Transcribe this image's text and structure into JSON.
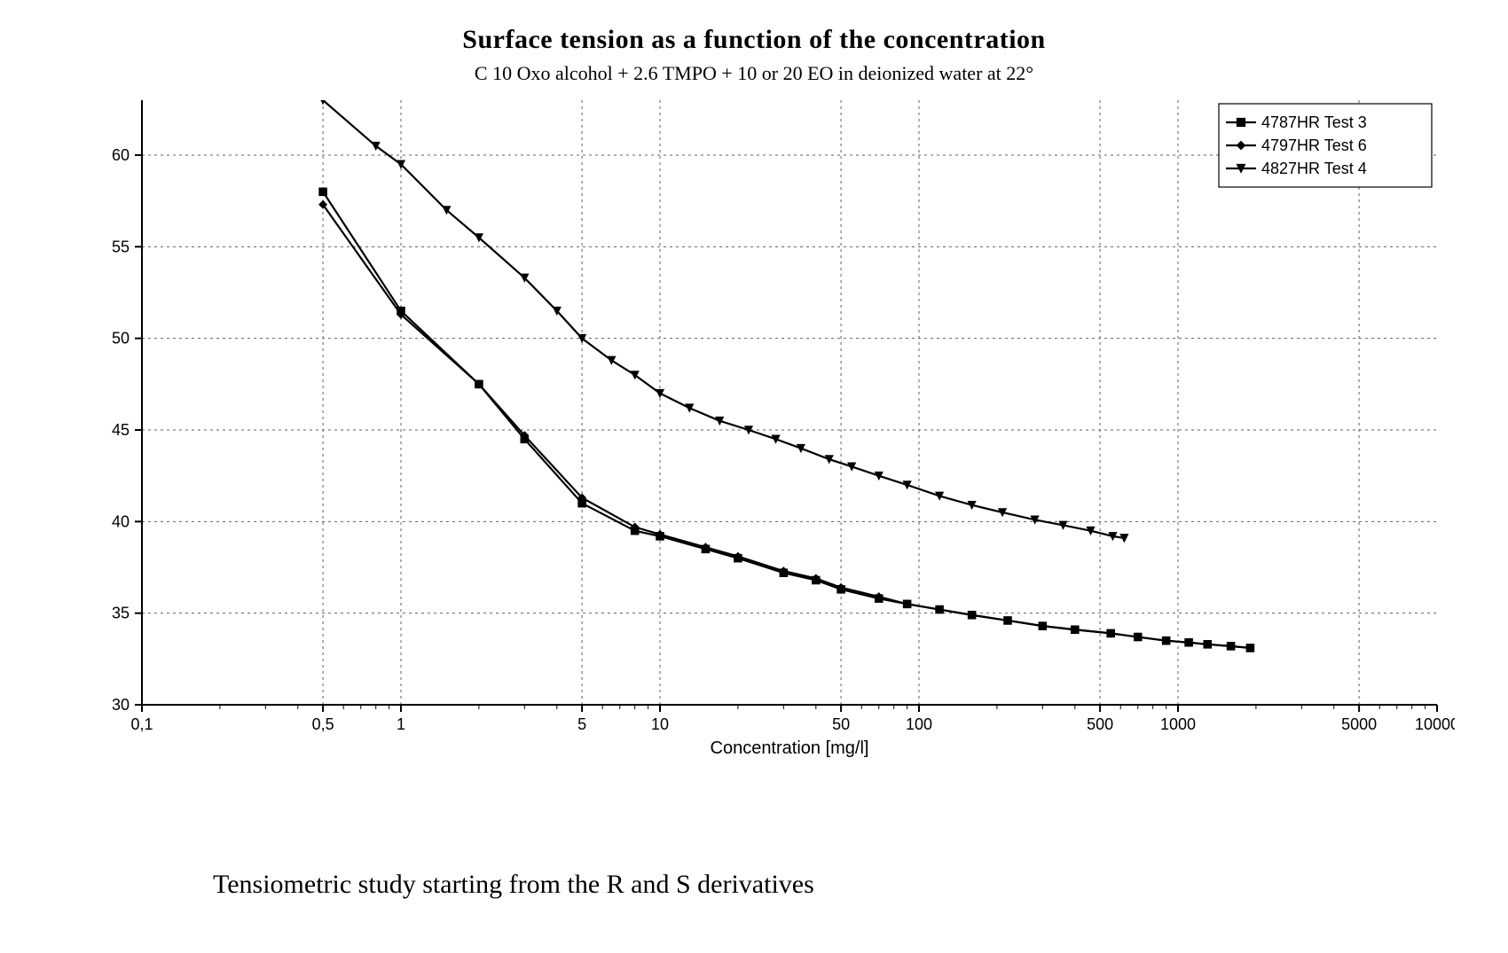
{
  "title": "Surface tension as a function of the concentration",
  "subtitle": "C 10 Oxo alcohol + 2.6 TMPO + 10 or 20 EO in deionized water at 22°",
  "caption": "Tensiometric study starting from the R and S derivatives",
  "chart": {
    "type": "line",
    "background_color": "#ffffff",
    "axis_color": "#000000",
    "grid_color": "#606060",
    "grid_dash": "3 4",
    "line_width": 2.2,
    "marker_size": 6,
    "font_family_axis": "Arial",
    "tick_fontsize": 18,
    "axis_label_fontsize": 20,
    "x": {
      "label": "Concentration [mg/l]",
      "scale": "log",
      "min": 0.1,
      "max": 10000,
      "major_ticks": [
        0.1,
        0.5,
        1,
        5,
        10,
        50,
        100,
        500,
        1000,
        5000,
        10000
      ],
      "tick_labels": [
        "0,1",
        "0,5",
        "1",
        "5",
        "10",
        "50",
        "100",
        "500",
        "1000",
        "5000",
        "10000"
      ],
      "vgrid_at": [
        0.5,
        1,
        5,
        10,
        50,
        100,
        500,
        1000,
        5000
      ]
    },
    "y": {
      "label": "",
      "scale": "linear",
      "min": 30,
      "max": 63,
      "major_ticks": [
        30,
        35,
        40,
        45,
        50,
        55,
        60
      ],
      "tick_labels": [
        "30",
        "35",
        "40",
        "45",
        "50",
        "55",
        "60"
      ]
    },
    "legend": {
      "position": "top-right",
      "border_color": "#000000",
      "bg_color": "#ffffff",
      "items": [
        {
          "label": "4787HR  Test 3",
          "marker": "square",
          "color": "#000000"
        },
        {
          "label": "4797HR  Test 6",
          "marker": "diamond",
          "color": "#000000"
        },
        {
          "label": "4827HR  Test 4",
          "marker": "triangle-down",
          "color": "#000000"
        }
      ]
    },
    "series": [
      {
        "name": "4787HR Test 3",
        "marker": "square",
        "color": "#000000",
        "points": [
          [
            0.5,
            58.0
          ],
          [
            1.0,
            51.5
          ],
          [
            2.0,
            47.5
          ],
          [
            3.0,
            44.5
          ],
          [
            5.0,
            41.0
          ],
          [
            8.0,
            39.5
          ],
          [
            10.0,
            39.2
          ],
          [
            15.0,
            38.5
          ],
          [
            20.0,
            38.0
          ],
          [
            30.0,
            37.2
          ],
          [
            40.0,
            36.8
          ],
          [
            50.0,
            36.3
          ],
          [
            70.0,
            35.8
          ],
          [
            90.0,
            35.5
          ],
          [
            120.0,
            35.2
          ],
          [
            160.0,
            34.9
          ],
          [
            220.0,
            34.6
          ],
          [
            300.0,
            34.3
          ],
          [
            400.0,
            34.1
          ],
          [
            550.0,
            33.9
          ],
          [
            700.0,
            33.7
          ],
          [
            900.0,
            33.5
          ],
          [
            1100.0,
            33.4
          ],
          [
            1300.0,
            33.3
          ],
          [
            1600.0,
            33.2
          ],
          [
            1900.0,
            33.1
          ]
        ]
      },
      {
        "name": "4797HR Test 6",
        "marker": "diamond",
        "color": "#000000",
        "points": [
          [
            0.5,
            57.3
          ],
          [
            1.0,
            51.3
          ],
          [
            2.0,
            47.5
          ],
          [
            3.0,
            44.7
          ],
          [
            5.0,
            41.3
          ],
          [
            8.0,
            39.7
          ],
          [
            10.0,
            39.3
          ],
          [
            15.0,
            38.6
          ],
          [
            20.0,
            38.1
          ],
          [
            30.0,
            37.3
          ],
          [
            40.0,
            36.9
          ],
          [
            50.0,
            36.4
          ],
          [
            70.0,
            35.9
          ],
          [
            90.0,
            35.5
          ],
          [
            120.0,
            35.2
          ],
          [
            160.0,
            34.9
          ],
          [
            220.0,
            34.6
          ],
          [
            300.0,
            34.3
          ],
          [
            400.0,
            34.1
          ],
          [
            550.0,
            33.9
          ],
          [
            700.0,
            33.7
          ],
          [
            900.0,
            33.5
          ],
          [
            1100.0,
            33.4
          ],
          [
            1300.0,
            33.3
          ],
          [
            1600.0,
            33.2
          ],
          [
            1900.0,
            33.1
          ]
        ]
      },
      {
        "name": "4827HR Test 4",
        "marker": "triangle-down",
        "color": "#000000",
        "points": [
          [
            0.5,
            63.0
          ],
          [
            0.8,
            60.5
          ],
          [
            1.0,
            59.5
          ],
          [
            1.5,
            57.0
          ],
          [
            2.0,
            55.5
          ],
          [
            3.0,
            53.3
          ],
          [
            4.0,
            51.5
          ],
          [
            5.0,
            50.0
          ],
          [
            6.5,
            48.8
          ],
          [
            8.0,
            48.0
          ],
          [
            10.0,
            47.0
          ],
          [
            13.0,
            46.2
          ],
          [
            17.0,
            45.5
          ],
          [
            22.0,
            45.0
          ],
          [
            28.0,
            44.5
          ],
          [
            35.0,
            44.0
          ],
          [
            45.0,
            43.4
          ],
          [
            55.0,
            43.0
          ],
          [
            70.0,
            42.5
          ],
          [
            90.0,
            42.0
          ],
          [
            120.0,
            41.4
          ],
          [
            160.0,
            40.9
          ],
          [
            210.0,
            40.5
          ],
          [
            280.0,
            40.1
          ],
          [
            360.0,
            39.8
          ],
          [
            460.0,
            39.5
          ],
          [
            560.0,
            39.2
          ],
          [
            620.0,
            39.1
          ]
        ]
      }
    ]
  }
}
